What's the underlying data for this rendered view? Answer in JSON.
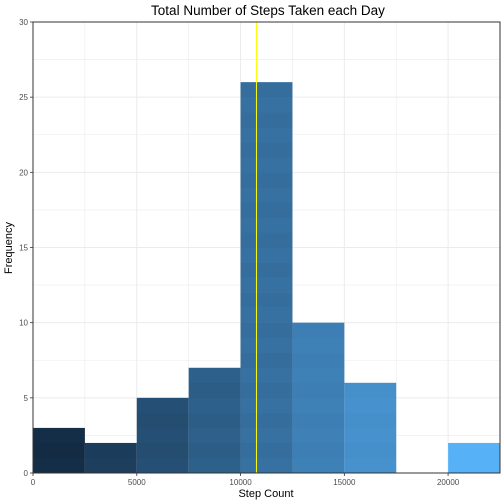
{
  "chart_data": {
    "type": "bar",
    "title": "Total Number of Steps Taken each Day",
    "xlabel": "Step Count",
    "ylabel": "Frequency",
    "xlim": [
      0,
      22500
    ],
    "ylim": [
      0,
      30
    ],
    "bin_width": 2500,
    "bins": [
      {
        "start": 0,
        "end": 2500,
        "value": 3
      },
      {
        "start": 2500,
        "end": 5000,
        "value": 2
      },
      {
        "start": 5000,
        "end": 7500,
        "value": 5
      },
      {
        "start": 7500,
        "end": 10000,
        "value": 7
      },
      {
        "start": 10000,
        "end": 12500,
        "value": 26
      },
      {
        "start": 12500,
        "end": 15000,
        "value": 10
      },
      {
        "start": 15000,
        "end": 17500,
        "value": 6
      },
      {
        "start": 17500,
        "end": 20000,
        "value": 0
      },
      {
        "start": 20000,
        "end": 22500,
        "value": 2
      }
    ],
    "x_ticks": [
      0,
      5000,
      10000,
      15000,
      20000
    ],
    "y_ticks": [
      0,
      5,
      10,
      15,
      20,
      25,
      30
    ],
    "mean_line": 10766,
    "grid": true,
    "legend": "none",
    "colors": {
      "fill_low": "#132b43",
      "fill_high": "#56b1f7",
      "mean_line": "#ffff00",
      "grid": "#ebebeb",
      "panel_border": "#333333"
    }
  }
}
